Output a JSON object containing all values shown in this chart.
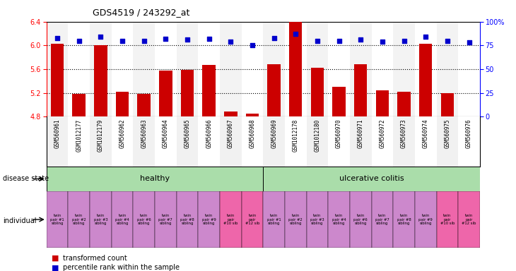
{
  "title": "GDS4519 / 243292_at",
  "samples": [
    "GSM560961",
    "GSM1012177",
    "GSM1012179",
    "GSM560962",
    "GSM560963",
    "GSM560964",
    "GSM560965",
    "GSM560966",
    "GSM560967",
    "GSM560968",
    "GSM560969",
    "GSM1012178",
    "GSM1012180",
    "GSM560970",
    "GSM560971",
    "GSM560972",
    "GSM560973",
    "GSM560974",
    "GSM560975",
    "GSM560976"
  ],
  "bar_values": [
    6.03,
    5.18,
    6.0,
    5.22,
    5.18,
    5.57,
    5.59,
    5.67,
    4.88,
    4.85,
    5.68,
    6.4,
    5.62,
    5.3,
    5.68,
    5.24,
    5.22,
    6.03,
    5.19,
    4.8
  ],
  "scatter_values_pct": [
    83,
    80,
    84,
    80,
    80,
    82,
    81,
    82,
    79,
    75,
    83,
    87,
    80,
    80,
    81,
    79,
    80,
    84,
    80,
    78
  ],
  "ylim_left": [
    4.8,
    6.4
  ],
  "ylim_right": [
    0,
    100
  ],
  "yticks_left": [
    4.8,
    5.2,
    5.6,
    6.0,
    6.4
  ],
  "yticks_right": [
    0,
    25,
    50,
    75,
    100
  ],
  "ytick_labels_right": [
    "0",
    "25",
    "50",
    "75",
    "100%"
  ],
  "hlines": [
    5.2,
    5.6,
    6.0
  ],
  "disease_state_healthy_count": 10,
  "disease_state_uc_count": 10,
  "healthy_label": "healthy",
  "uc_label": "ulcerative colitis",
  "healthy_color": "#aaddaa",
  "uc_color": "#aaddaa",
  "bar_color": "#CC0000",
  "scatter_color": "#0000CC",
  "individual_labels_healthy": [
    "twin\npair #1\nsibling",
    "twin\npair #2\nsibling",
    "twin\npair #3\nsibling",
    "twin\npair #4\nsibling",
    "twin\npair #6\nsibling",
    "twin\npair #7\nsibling",
    "twin\npair #8\nsibling",
    "twin\npair #9\nsibling",
    "twin\npair\n#10 sib",
    "twin\npair\n#12 sib"
  ],
  "individual_labels_uc": [
    "twin\npair #1\nsibling",
    "twin\npair #2\nsibling",
    "twin\npair #3\nsibling",
    "twin\npair #4\nsibling",
    "twin\npair #6\nsibling",
    "twin\npair #7\nsibling",
    "twin\npair #8\nsibling",
    "twin\npair #9\nsibling",
    "twin\npair\n#10 sib",
    "twin\npair\n#12 sib"
  ],
  "individual_healthy_colors": [
    "#CC88CC",
    "#CC88CC",
    "#CC88CC",
    "#CC88CC",
    "#CC88CC",
    "#CC88CC",
    "#CC88CC",
    "#CC88CC",
    "#EE66AA",
    "#EE66AA"
  ],
  "individual_uc_colors": [
    "#CC88CC",
    "#CC88CC",
    "#CC88CC",
    "#CC88CC",
    "#CC88CC",
    "#CC88CC",
    "#CC88CC",
    "#CC88CC",
    "#EE66AA",
    "#EE66AA"
  ],
  "legend_bar_label": "transformed count",
  "legend_scatter_label": "percentile rank within the sample",
  "bar_width": 0.6,
  "bg_color_odd": "#e8e8e8",
  "bg_color_even": "#ffffff",
  "xlabels_bg": "#cccccc"
}
